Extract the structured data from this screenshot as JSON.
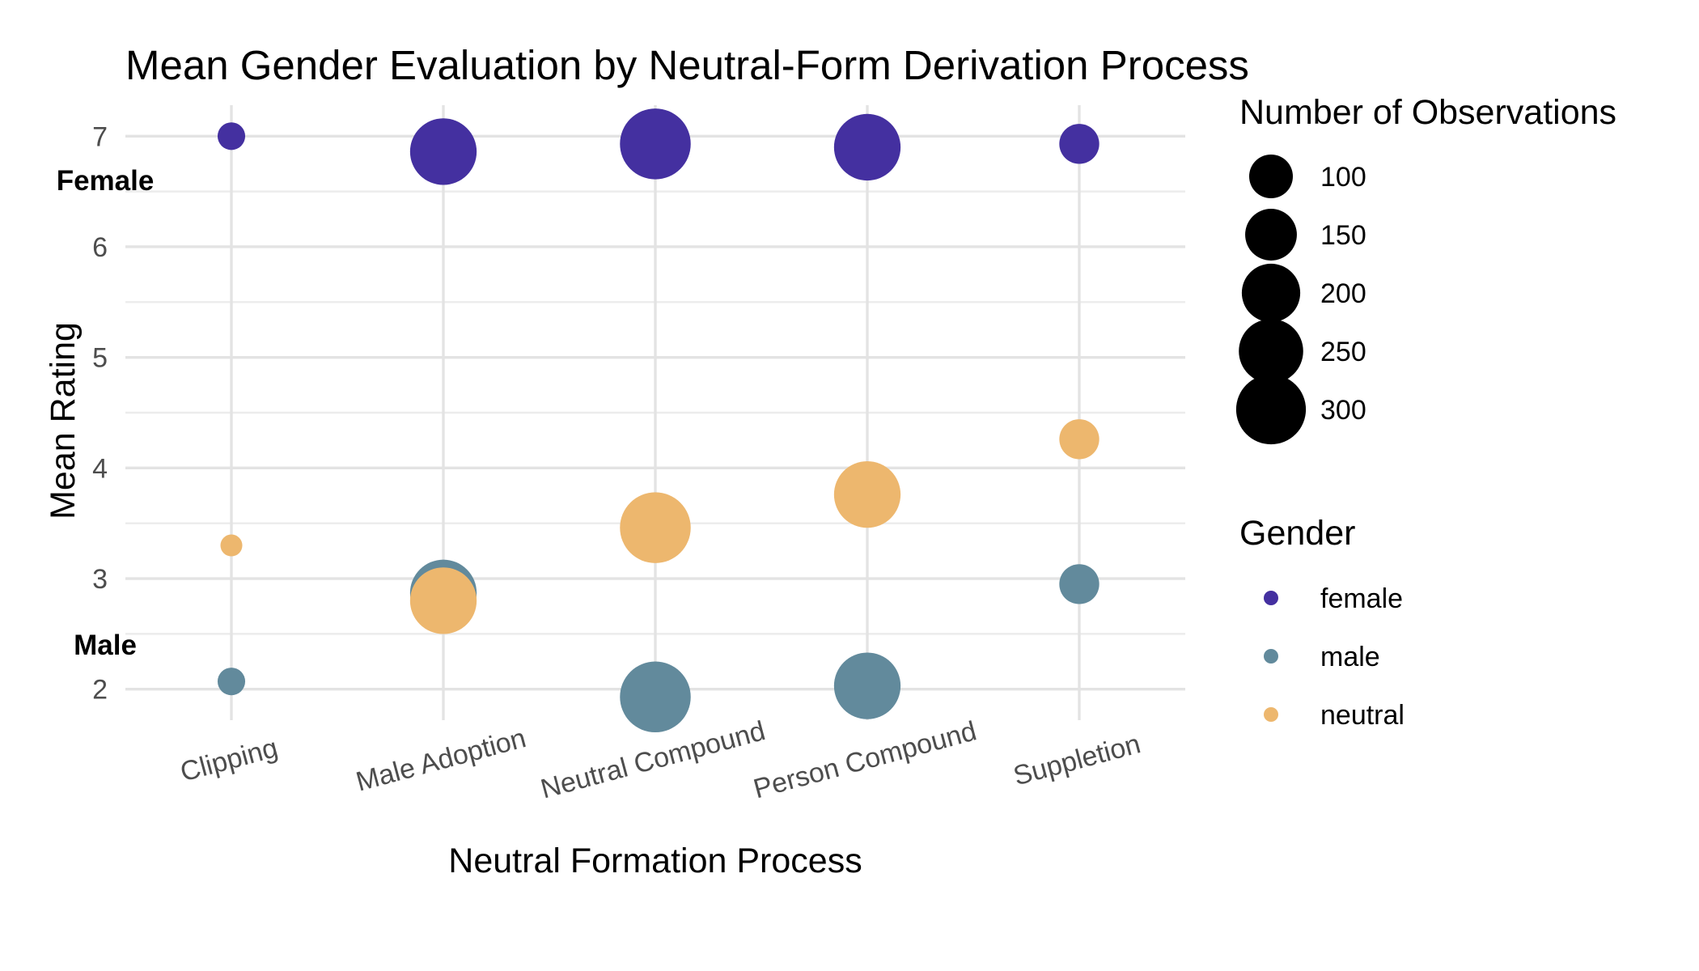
{
  "chart_data": {
    "type": "scatter",
    "title": "Mean Gender Evaluation by Neutral-Form Derivation Process",
    "xlabel": "Neutral Formation Process",
    "ylabel": "Mean Rating",
    "categories": [
      "Clipping",
      "Male Adoption",
      "Neutral Compound",
      "Person Compound",
      "Suppletion"
    ],
    "ylim": [
      1.72,
      7.28
    ],
    "yticks": [
      "2",
      "3",
      "4",
      "5",
      "6",
      "7"
    ],
    "grid": true,
    "series": [
      {
        "name": "female",
        "color": "#4430a0",
        "values": [
          7.0,
          6.86,
          6.93,
          6.9,
          6.93
        ],
        "n": [
          30,
          270,
          310,
          270,
          80
        ]
      },
      {
        "name": "male",
        "color": "#628a9c",
        "values": [
          2.07,
          2.87,
          1.93,
          2.03,
          2.95
        ],
        "n": [
          30,
          270,
          310,
          270,
          80
        ]
      },
      {
        "name": "neutral",
        "color": "#edb76e",
        "values": [
          3.3,
          2.8,
          3.46,
          3.76,
          4.26
        ],
        "n": [
          15,
          270,
          310,
          270,
          80
        ]
      }
    ],
    "annotations": [
      {
        "text": "Female",
        "y": 6.6
      },
      {
        "text": "Male",
        "y": 2.4
      }
    ],
    "size_legend": {
      "title": "Number of Observations",
      "values": [
        100,
        150,
        200,
        250,
        300
      ],
      "labels": [
        "100",
        "150",
        "200",
        "250",
        "300"
      ]
    },
    "color_legend": {
      "title": "Gender",
      "labels": [
        "female",
        "male",
        "neutral"
      ]
    },
    "legend_position": "right"
  }
}
